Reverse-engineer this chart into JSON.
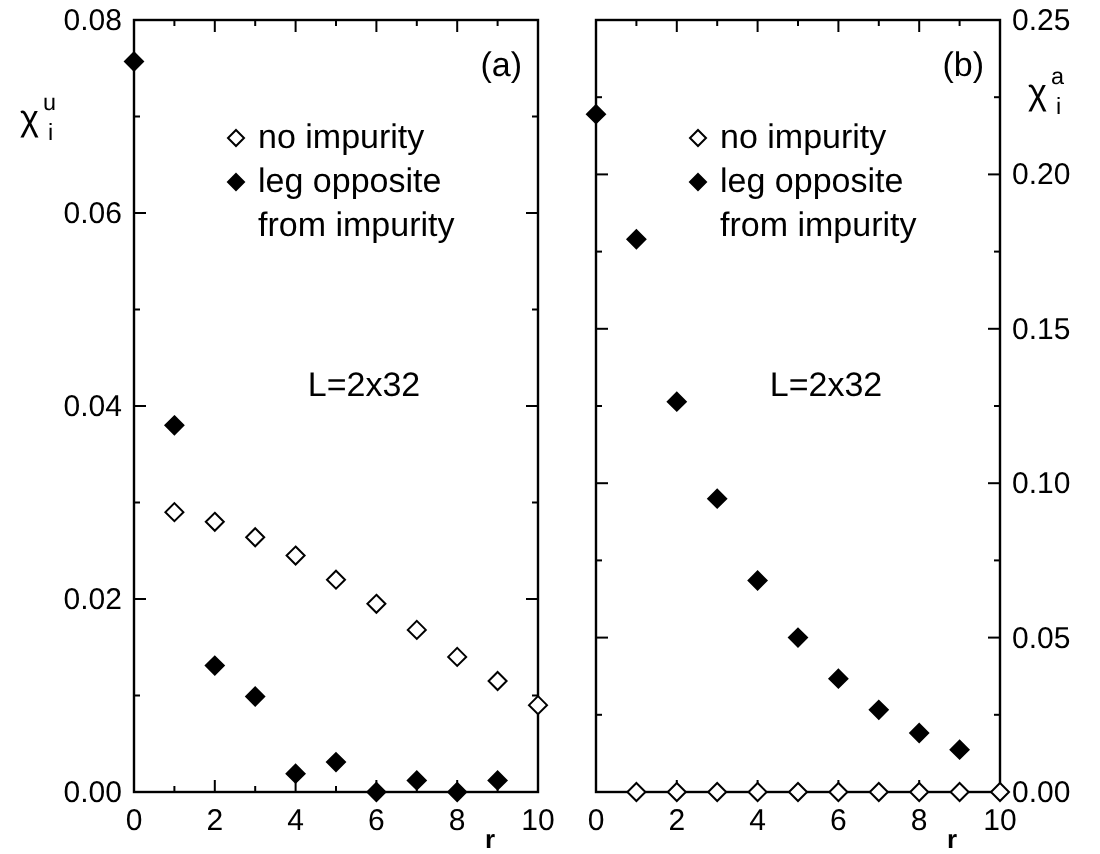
{
  "chart_data": [
    {
      "type": "scatter",
      "xlabel": "r",
      "ylabel": "χ$^{u}$$_{i}$",
      "annotations": [
        "(a)",
        "L=2x32"
      ],
      "xlim": [
        0,
        10
      ],
      "ylim": [
        0,
        0.08
      ],
      "xticks": [
        0,
        {
          "value": 1,
          "label": null
        },
        2,
        {
          "value": 3,
          "label": null
        },
        4,
        {
          "value": 5,
          "label": null
        },
        6,
        {
          "value": 7,
          "label": null
        },
        8,
        {
          "value": 9,
          "label": null
        },
        10
      ],
      "yticks": [
        {
          "value": 0,
          "label": "0.00"
        },
        {
          "value": 0.01,
          "label": null
        },
        0.02,
        {
          "value": 0.03,
          "label": null
        },
        0.04,
        {
          "value": 0.05,
          "label": null
        },
        0.06,
        {
          "value": 0.07,
          "label": null
        },
        0.08
      ],
      "legend": "top right",
      "marker": "diamond",
      "grid": false,
      "series": [
        {
          "name": "no impurity",
          "color": "#ffffff",
          "x": [
            1,
            2,
            3,
            4,
            5,
            6,
            7,
            8,
            9,
            10
          ],
          "values": [
            0.029,
            0.028,
            0.0264,
            0.0245,
            0.022,
            0.0195,
            0.0168,
            0.014,
            0.0115,
            0.009
          ]
        },
        {
          "name": "leg opposite from impurity",
          "color": "#000000",
          "x": [
            0,
            1,
            2,
            3,
            4,
            5,
            6,
            7,
            8,
            9
          ],
          "values": [
            0.0757,
            0.038,
            0.0131,
            0.0099,
            0.0019,
            0.0031,
            0,
            0.0012,
            0,
            0.0012
          ]
        }
      ]
    },
    {
      "type": "scatter",
      "xlabel": "r",
      "ylabel": "χ$^{a}$$_{i}$",
      "annotations": [
        "(b)",
        "L=2x32"
      ],
      "xlim": [
        0,
        10
      ],
      "ylim": [
        0,
        0.25
      ],
      "xticks": [
        0,
        {
          "value": 1,
          "label": null
        },
        2,
        {
          "value": 3,
          "label": null
        },
        4,
        {
          "value": 5,
          "label": null
        },
        6,
        {
          "value": 7,
          "label": null
        },
        8,
        {
          "value": 9,
          "label": null
        },
        10
      ],
      "yticks": [
        {
          "value": 0,
          "label": "0.00"
        },
        {
          "value": 0.025,
          "label": null
        },
        0.05,
        {
          "value": 0.075,
          "label": null
        },
        {
          "value": 0.1,
          "label": "0.10"
        },
        {
          "value": 0.125,
          "label": null
        },
        0.15,
        {
          "value": 0.175,
          "label": null
        },
        {
          "value": 0.2,
          "label": "0.20"
        },
        {
          "value": 0.225,
          "label": null
        },
        0.25
      ],
      "legend": "top right",
      "marker": "diamond",
      "grid": false,
      "series": [
        {
          "name": "no impurity",
          "color": "#ffffff",
          "x": [
            1,
            2,
            3,
            4,
            5,
            6,
            7,
            8,
            9,
            10
          ],
          "values": [
            0,
            0,
            0,
            0,
            0,
            0,
            0,
            0,
            0,
            0
          ]
        },
        {
          "name": "leg opposite from impurity",
          "color": "#000000",
          "x": [
            0,
            1,
            2,
            3,
            4,
            5,
            6,
            7,
            8,
            9
          ],
          "values": [
            0.2195,
            0.179,
            0.1264,
            0.095,
            0.0685,
            0.05,
            0.0367,
            0.0266,
            0.0191,
            0.0137
          ]
        }
      ]
    }
  ]
}
